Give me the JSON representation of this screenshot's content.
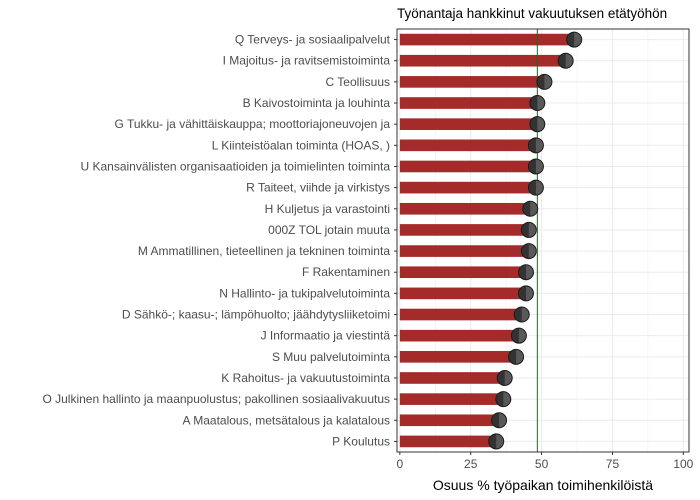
{
  "chart_data": {
    "type": "bar",
    "title": "Työnantaja hankkinut vakuutuksen etätyöhön",
    "xlabel": "Osuus % työpaikan toimihenkilöistä",
    "ylabel": "",
    "orientation": "horizontal",
    "xlim": [
      -1,
      102
    ],
    "xticks": [
      0,
      25,
      50,
      75,
      100
    ],
    "grid": true,
    "legend": "none",
    "reference_line": 48.5,
    "colors": {
      "bar": "#a52a2a",
      "point_left": "#333333",
      "point_right": "#595959",
      "reference_line": "#1a6b1a",
      "grid": "#ebebeb",
      "frame": "#333333"
    },
    "categories": [
      "Q Terveys- ja sosiaalipalvelut",
      "I Majoitus- ja ravitsemistoiminta",
      "C Teollisuus",
      "B Kaivostoiminta ja louhinta",
      "G Tukku- ja vähittäiskauppa; moottoriajoneuvojen ja",
      "L Kiinteistöalan toiminta (HOAS, )",
      "U Kansainvälisten organisaatioiden ja toimielinten toiminta",
      "R Taiteet, viihde ja virkistys",
      "H Kuljetus ja varastointi",
      "000Z TOL jotain muuta",
      "M Ammatillinen, tieteellinen ja tekninen toiminta",
      "F Rakentaminen",
      "N Hallinto- ja tukipalvelutoiminta",
      "D Sähkö-; kaasu-; lämpöhuolto; jäähdytysliiketoimi",
      "J Informaatio ja viestintä",
      "S Muu palvelutoiminta",
      "K Rahoitus- ja vakuutustoiminta",
      "O Julkinen hallinto ja maanpuolustus; pakollinen sosiaalivakuutus",
      "A Maatalous, metsätalous ja kalatalous",
      "P Koulutus"
    ],
    "values": [
      61.5,
      58.5,
      51,
      48.5,
      48.5,
      48,
      48,
      48,
      46,
      45.5,
      45.5,
      44.5,
      44.5,
      43,
      42,
      41,
      37,
      36.5,
      35,
      34
    ]
  }
}
